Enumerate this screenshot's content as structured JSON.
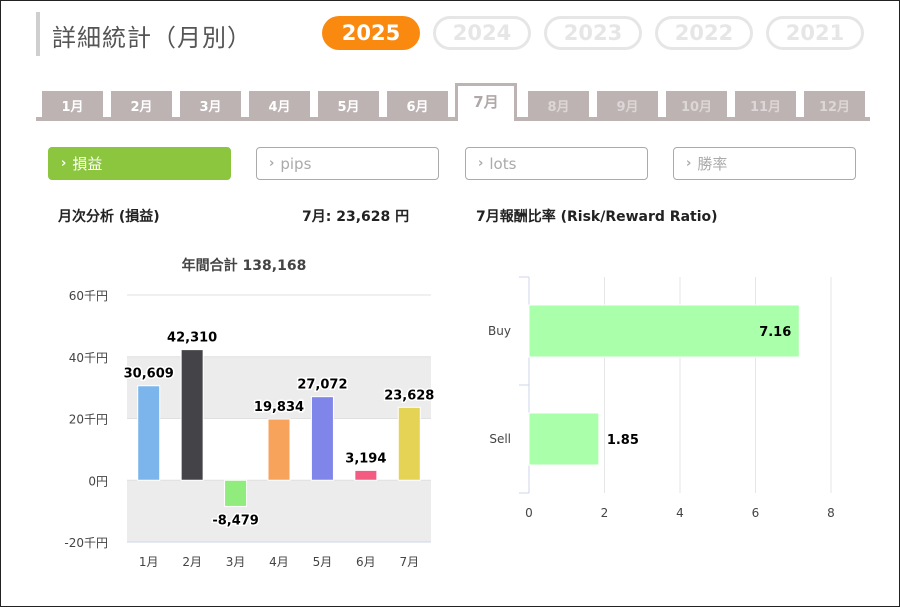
{
  "title": "詳細統計（月別）",
  "years": [
    {
      "label": "2025",
      "active": true
    },
    {
      "label": "2024",
      "active": false
    },
    {
      "label": "2023",
      "active": false
    },
    {
      "label": "2022",
      "active": false
    },
    {
      "label": "2021",
      "active": false
    }
  ],
  "months": [
    {
      "label": "1月",
      "state": "past"
    },
    {
      "label": "2月",
      "state": "past"
    },
    {
      "label": "3月",
      "state": "past"
    },
    {
      "label": "4月",
      "state": "past"
    },
    {
      "label": "5月",
      "state": "past"
    },
    {
      "label": "6月",
      "state": "past"
    },
    {
      "label": "7月",
      "state": "active"
    },
    {
      "label": "8月",
      "state": "future"
    },
    {
      "label": "9月",
      "state": "future"
    },
    {
      "label": "10月",
      "state": "future"
    },
    {
      "label": "11月",
      "state": "future"
    },
    {
      "label": "12月",
      "state": "future"
    }
  ],
  "metric_tabs": [
    {
      "label": "損益",
      "active": true
    },
    {
      "label": "pips",
      "active": false
    },
    {
      "label": "lots",
      "active": false
    },
    {
      "label": "勝率",
      "active": false
    }
  ],
  "left_panel": {
    "heading": "月次分析 (損益)",
    "month_value": "7月:  23,628 円"
  },
  "right_panel": {
    "heading": "7月報酬比率 (Risk/Reward Ratio)"
  },
  "colors": {
    "accent": "#f98a0f",
    "active_tab": "#8cc63f",
    "month_tab": "#bdb3b3"
  },
  "chart_data": [
    {
      "type": "bar",
      "title": "年間合計 138,168",
      "categories": [
        "1月",
        "2月",
        "3月",
        "4月",
        "5月",
        "6月",
        "7月"
      ],
      "values": [
        30609,
        42310,
        -8479,
        19834,
        27072,
        3194,
        23628
      ],
      "value_labels": [
        "30,609",
        "42,310",
        "-8,479",
        "19,834",
        "27,072",
        "3,194",
        "23,628"
      ],
      "bar_colors": [
        "#7cb5ec",
        "#434348",
        "#90ed7d",
        "#f7a35c",
        "#8085e9",
        "#f15c80",
        "#e4d354"
      ],
      "ylim": [
        -20000,
        60000
      ],
      "yticks": [
        {
          "value": 60000,
          "label": "60千円"
        },
        {
          "value": 40000,
          "label": "40千円"
        },
        {
          "value": 20000,
          "label": "20千円"
        },
        {
          "value": 0,
          "label": "0円"
        },
        {
          "value": -20000,
          "label": "-20千円"
        }
      ],
      "grid": true,
      "legend": "none"
    },
    {
      "type": "bar",
      "orientation": "horizontal",
      "categories": [
        "Buy",
        "Sell"
      ],
      "values": [
        7.16,
        1.85
      ],
      "value_labels": [
        "7.16",
        "1.85"
      ],
      "bar_color": "#aaffaa",
      "xlim": [
        0,
        8
      ],
      "xticks": [
        "0",
        "2",
        "4",
        "6",
        "8"
      ],
      "grid": true,
      "legend": "none"
    }
  ]
}
